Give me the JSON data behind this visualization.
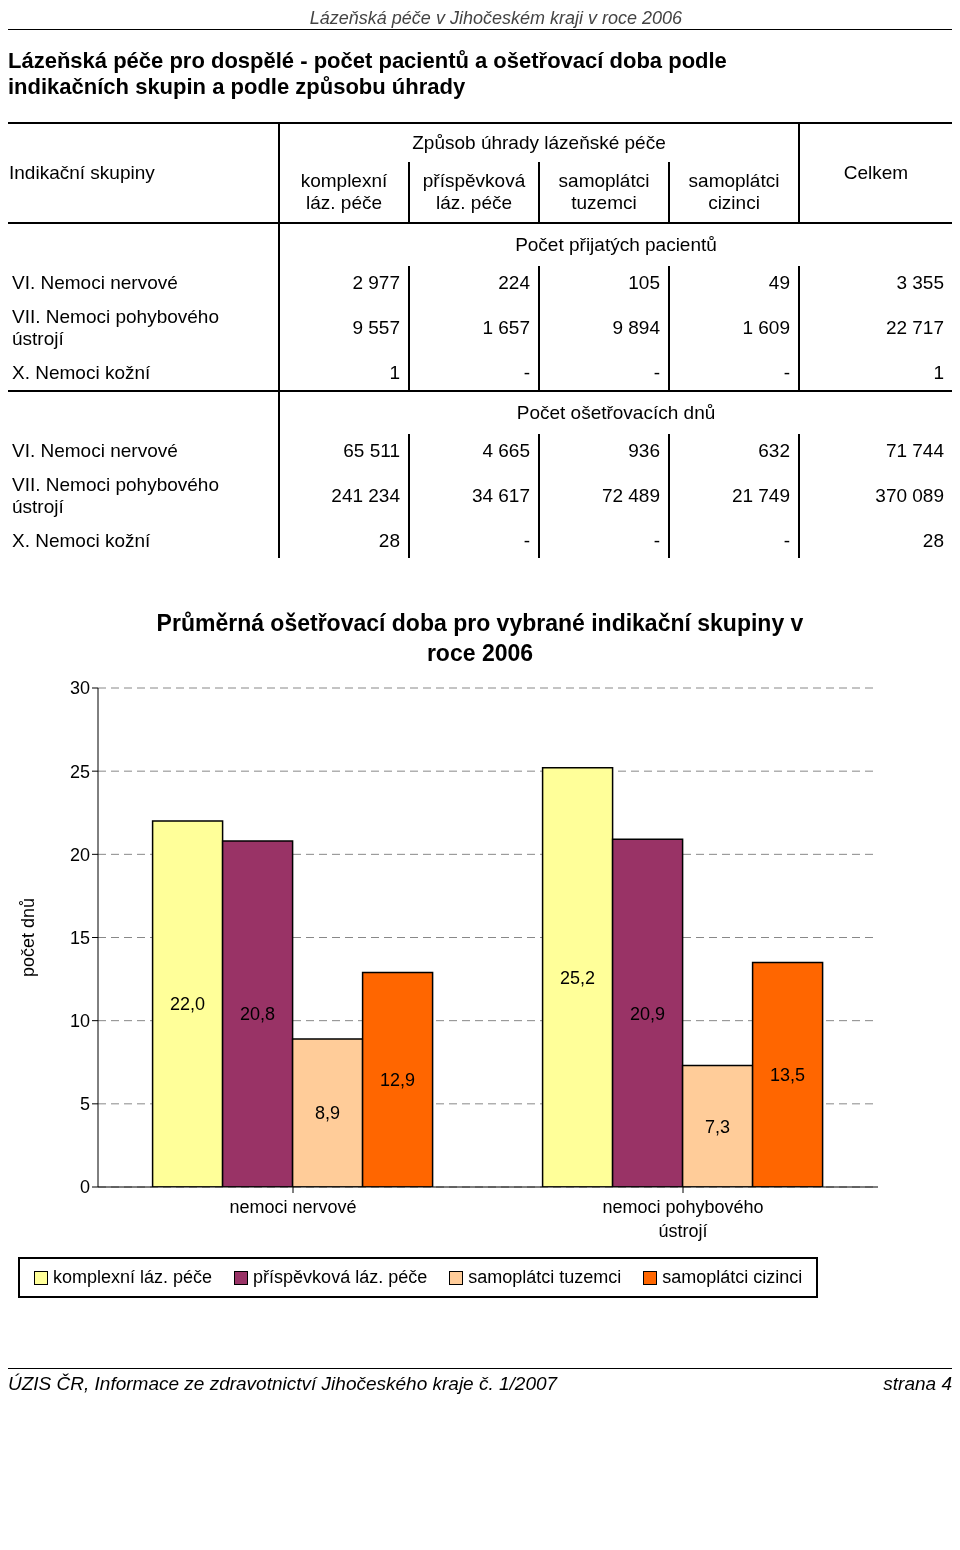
{
  "chart_data": [
    {
      "type": "other",
      "title": "Lázeňská péče pro dospělé - počet pacientů a ošetřovací doba podle indikačních skupin a podle způsobu úhrady",
      "categories": [
        "komplexní láz. péče",
        "příspěvková láz. péče",
        "samoplátci tuzemci",
        "samoplátci cizinci",
        "Celkem"
      ],
      "y_categories": [
        "VI. Nemoci nervové",
        "VII. Nemoci pohybového ústrojí",
        "X. Nemoci kožní",
        "VI. Nemoci nervové",
        "VII. Nemoci pohybového ústrojí",
        "X. Nemoci kožní"
      ],
      "cell_labels": [
        [
          "2 977",
          "224",
          "105",
          "49",
          "3 355"
        ],
        [
          "9 557",
          "1 657",
          "9 894",
          "1 609",
          "22 717"
        ],
        [
          "1",
          "-",
          "-",
          "-",
          "1"
        ],
        [
          "65 511",
          "4 665",
          "936",
          "632",
          "71 744"
        ],
        [
          "241 234",
          "34 617",
          "72 489",
          "21 749",
          "370 089"
        ],
        [
          "28",
          "-",
          "-",
          "-",
          "28"
        ]
      ],
      "annotations": [
        "Indikační skupiny",
        "Způsob úhrady lázeňské péče",
        "Počet přijatých pacientů",
        "Počet ošetřovacích dnů",
        "Lázeňská péče v Jihočeském kraji v roce 2006",
        "ÚZIS ČR, Informace ze zdravotnictví Jihočeského kraje č. 1/2007",
        "strana 4"
      ]
    },
    {
      "type": "bar",
      "title": "Průměrná ošetřovací doba pro vybrané indikační skupiny v roce 2006",
      "ylabel": "počet dnů",
      "categories": [
        "nemoci nervové",
        "nemoci pohybového ústrojí"
      ],
      "series": [
        {
          "name": "komplexní láz. péče",
          "color": "#ffff99",
          "values": [
            22.0,
            25.2
          ],
          "value_labels": [
            "22,0",
            "25,2"
          ]
        },
        {
          "name": "příspěvková láz. péče",
          "color": "#993366",
          "values": [
            20.8,
            20.9
          ],
          "value_labels": [
            "20,8",
            "20,9"
          ]
        },
        {
          "name": "samoplátci tuzemci",
          "color": "#ffcc99",
          "values": [
            8.9,
            7.3
          ],
          "value_labels": [
            "8,9",
            "7,3"
          ]
        },
        {
          "name": "samoplátci cizinci",
          "color": "#ff6600",
          "values": [
            12.9,
            13.5
          ],
          "value_labels": [
            "12,9",
            "13,5"
          ]
        }
      ],
      "ylim": [
        0,
        30
      ],
      "yticks": [
        0,
        5,
        10,
        15,
        20,
        25,
        30
      ],
      "grid": "y",
      "legend": "bottom"
    }
  ]
}
